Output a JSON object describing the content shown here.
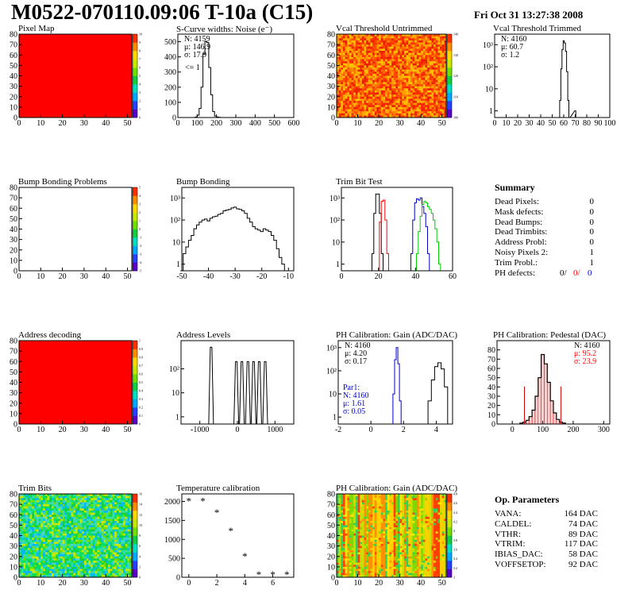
{
  "header": {
    "title": "M0522-070110.09:06 T-10a (C15)",
    "date": "Fri Oct 31 13:27:38 2008"
  },
  "colors": {
    "red": "#ff0000",
    "blue": "#0000cc",
    "green": "#00cc00"
  },
  "map_palette": [
    "#5a00c8",
    "#2840ff",
    "#00a8ff",
    "#00e0c0",
    "#10d040",
    "#70e000",
    "#c8e800",
    "#ffd800",
    "#ff8c00",
    "#ff3000"
  ],
  "chart_data": [
    {
      "id": "pixel-map",
      "type": "heatmap",
      "title": "Pixel Map",
      "fill": "uniform",
      "xlim": [
        0,
        52
      ],
      "ylim": [
        0,
        80
      ],
      "xticks": [
        "0",
        "10",
        "20",
        "30",
        "40",
        "50"
      ],
      "yticks": [
        "0",
        "10",
        "20",
        "30",
        "40",
        "50",
        "60",
        "70",
        "80"
      ],
      "zticks": [
        "0",
        "1",
        "2",
        "3",
        "4",
        "5",
        "6",
        "7",
        "8",
        "9",
        "10"
      ]
    },
    {
      "id": "scurve",
      "type": "line",
      "title": "S-Curve widths: Noise (e⁻)",
      "xlim": [
        0,
        600
      ],
      "ylim": [
        0,
        550
      ],
      "xticks": [
        "0",
        "100",
        "200",
        "300",
        "400",
        "500",
        "600"
      ],
      "yticks": [
        "0",
        "100",
        "200",
        "300",
        "400",
        "500"
      ],
      "annotation": "<= 1",
      "stats": [
        "N: 4159",
        "μ: 146.9",
        "σ: 17.9"
      ],
      "x": [
        85,
        95,
        105,
        115,
        125,
        135,
        145,
        155,
        165,
        175,
        185,
        195,
        205,
        215,
        225
      ],
      "values": [
        0,
        3,
        15,
        60,
        200,
        420,
        500,
        495,
        330,
        150,
        40,
        10,
        3,
        1,
        0
      ]
    },
    {
      "id": "vcal-untrimmed",
      "type": "heatmap",
      "title": "Vcal Threshold Untrimmed",
      "fill": "noise",
      "xlim": [
        0,
        52
      ],
      "ylim": [
        0,
        80
      ],
      "xticks": [
        "0",
        "10",
        "20",
        "30",
        "40",
        "50"
      ],
      "yticks": [
        "0",
        "10",
        "20",
        "30",
        "40",
        "50",
        "60",
        "70",
        "80"
      ],
      "zticks": [
        "100",
        "110",
        "120",
        "130",
        "140"
      ]
    },
    {
      "id": "vcal-trimmed",
      "type": "line",
      "title": "Vcal Threshold Trimmed",
      "log": true,
      "xlim": [
        0,
        100
      ],
      "ylim": [
        0.5,
        3000
      ],
      "xticks": [
        "0",
        "10",
        "20",
        "30",
        "40",
        "50",
        "60",
        "70",
        "80",
        "90",
        "100"
      ],
      "yticks": [
        "1",
        "10",
        "10²",
        "10³"
      ],
      "stats": [
        "N: 4160",
        "μ: 60.7",
        "σ: 1.2"
      ],
      "x": [
        56,
        57,
        58,
        59,
        60,
        61,
        62,
        63,
        64,
        65,
        70
      ],
      "values": [
        0,
        3,
        80,
        600,
        1500,
        1200,
        500,
        60,
        3,
        0,
        1
      ]
    },
    {
      "id": "bump-problems",
      "type": "heatmap",
      "title": "Bump Bonding Problems",
      "fill": "empty",
      "xlim": [
        0,
        52
      ],
      "ylim": [
        0,
        80
      ],
      "xticks": [
        "0",
        "10",
        "20",
        "30",
        "40",
        "50"
      ],
      "yticks": [
        "0",
        "10",
        "20",
        "30",
        "40",
        "50",
        "60",
        "70",
        "80"
      ],
      "zticks": [
        "-5",
        "-4",
        "-3",
        "-2",
        "-1",
        "0",
        "1",
        "2",
        "3",
        "4",
        "5"
      ]
    },
    {
      "id": "bump-bonding",
      "type": "line",
      "title": "Bump Bonding",
      "log": true,
      "xlim": [
        -50,
        -8
      ],
      "ylim": [
        0.5,
        3000
      ],
      "xticks": [
        "-50",
        "-40",
        "-30",
        "-20",
        "-10"
      ],
      "yticks": [
        "1",
        "10",
        "10²",
        "10³"
      ],
      "x": [
        -50,
        -49,
        -48,
        -47,
        -46,
        -45,
        -44,
        -43,
        -42,
        -41,
        -40,
        -39,
        -38,
        -37,
        -36,
        -35,
        -34,
        -33,
        -32,
        -31,
        -30,
        -29,
        -28,
        -27,
        -26,
        -25,
        -24,
        -23,
        -22,
        -21,
        -20,
        -19,
        -18,
        -17,
        -16,
        -15,
        -14,
        -13,
        -12,
        -11,
        -10
      ],
      "values": [
        0.5,
        3,
        6,
        12,
        20,
        40,
        60,
        80,
        100,
        110,
        90,
        120,
        140,
        150,
        180,
        200,
        260,
        280,
        300,
        350,
        380,
        320,
        300,
        260,
        200,
        120,
        80,
        50,
        40,
        35,
        30,
        40,
        35,
        30,
        20,
        12,
        5,
        2,
        1,
        0.5,
        0.5
      ]
    },
    {
      "id": "trim-bit-test",
      "type": "line",
      "title": "Trim Bit Test",
      "log": true,
      "xlim": [
        0,
        60
      ],
      "ylim": [
        0.5,
        3000
      ],
      "xticks": [
        "0",
        "20",
        "40",
        "60"
      ],
      "yticks": [
        "1",
        "10",
        "10²",
        "10³"
      ],
      "series": [
        {
          "color": "#000000",
          "x": [
            16,
            17,
            18,
            19,
            20,
            21,
            22,
            23
          ],
          "values": [
            0.5,
            3,
            200,
            1500,
            1500,
            200,
            3,
            0.5
          ]
        },
        {
          "color": "#ff0000",
          "x": [
            20,
            21,
            22,
            23,
            24,
            25,
            26
          ],
          "values": [
            0.5,
            80,
            700,
            800,
            100,
            3,
            0.5
          ]
        },
        {
          "color": "#0000cc",
          "x": [
            37,
            38,
            39,
            40,
            41,
            42,
            43,
            44,
            45,
            46,
            47,
            48
          ],
          "values": [
            0.5,
            3,
            100,
            600,
            900,
            800,
            1000,
            400,
            200,
            50,
            3,
            0.5
          ]
        },
        {
          "color": "#00cc00",
          "x": [
            40,
            41,
            42,
            43,
            44,
            45,
            46,
            47,
            48,
            49,
            50,
            51,
            52,
            53,
            54
          ],
          "values": [
            0.5,
            3,
            30,
            150,
            500,
            700,
            600,
            400,
            300,
            200,
            100,
            40,
            10,
            1,
            0.5
          ]
        }
      ]
    },
    {
      "id": "address-decoding",
      "type": "heatmap",
      "title": "Address decoding",
      "fill": "uniform",
      "xlim": [
        0,
        52
      ],
      "ylim": [
        0,
        80
      ],
      "xticks": [
        "0",
        "10",
        "20",
        "30",
        "40",
        "50"
      ],
      "yticks": [
        "0",
        "10",
        "20",
        "30",
        "40",
        "50",
        "60",
        "70",
        "80"
      ],
      "zticks": [
        "0",
        "0.1",
        "0.2",
        "0.3",
        "0.4",
        "0.5",
        "0.6",
        "0.7",
        "0.8",
        "0.9",
        "1"
      ]
    },
    {
      "id": "address-levels",
      "type": "bar",
      "title": "Address Levels",
      "log": true,
      "xlim": [
        -1500,
        1500
      ],
      "ylim": [
        0.5,
        1500
      ],
      "xticks": [
        "-1000",
        "0",
        "1000"
      ],
      "yticks": [
        "1",
        "10",
        "10²"
      ],
      "x": [
        -700,
        -30,
        120,
        280,
        430,
        580,
        740
      ],
      "values": [
        800,
        200,
        200,
        200,
        200,
        200,
        200
      ]
    },
    {
      "id": "ph-gain",
      "type": "line",
      "title": "PH Calibration: Gain (ADC/DAC)",
      "log": true,
      "xlim": [
        -2,
        5
      ],
      "ylim": [
        0.5,
        2000
      ],
      "xticks": [
        "-2",
        "0",
        "2",
        "4"
      ],
      "yticks": [
        "1",
        "10",
        "10²",
        "10³"
      ],
      "stats": [
        "N: 4160",
        "μ: 4.20",
        "σ: 0.17"
      ],
      "stats2": [
        "Par1:",
        "N: 4160",
        "μ: 1.61",
        "σ: 0.05"
      ],
      "series": [
        {
          "color": "#0000cc",
          "x": [
            1.3,
            1.4,
            1.5,
            1.6,
            1.7,
            1.8,
            1.9
          ],
          "values": [
            0.5,
            10,
            300,
            1000,
            200,
            5,
            0.5
          ]
        },
        {
          "color": "#000000",
          "x": [
            3.4,
            3.6,
            3.8,
            4.0,
            4.2,
            4.4,
            4.6,
            4.8
          ],
          "values": [
            0.5,
            5,
            40,
            150,
            220,
            120,
            20,
            0.5
          ]
        }
      ]
    },
    {
      "id": "ph-pedestal",
      "type": "bar",
      "title": "PH Calibration: Pedestal (DAC)",
      "xlim": [
        -50,
        320
      ],
      "ylim": [
        0,
        90
      ],
      "xticks": [
        "0",
        "100",
        "200",
        "300"
      ],
      "yticks": [
        "0",
        "10",
        "20",
        "30",
        "40",
        "50",
        "60",
        "70",
        "80"
      ],
      "stats": [
        "N: 4160",
        "μ: 95.2",
        "σ: 23.9"
      ],
      "fitx": [
        40,
        160
      ],
      "x": [
        30,
        40,
        50,
        60,
        70,
        80,
        90,
        100,
        110,
        120,
        130,
        140,
        150,
        160,
        170
      ],
      "values": [
        1,
        2,
        4,
        8,
        15,
        30,
        50,
        75,
        65,
        45,
        25,
        12,
        5,
        2,
        1
      ]
    },
    {
      "id": "trim-bits",
      "type": "heatmap",
      "title": "Trim Bits",
      "fill": "trim",
      "xlim": [
        0,
        52
      ],
      "ylim": [
        0,
        80
      ],
      "xticks": [
        "0",
        "10",
        "20",
        "30",
        "40",
        "50"
      ],
      "yticks": [
        "0",
        "10",
        "20",
        "30",
        "40",
        "50",
        "60",
        "70",
        "80"
      ],
      "zticks": [
        "0",
        "2",
        "4",
        "6",
        "8",
        "10",
        "12",
        "14",
        "16"
      ]
    },
    {
      "id": "temperature",
      "type": "scatter",
      "title": "Temperature calibration",
      "xlim": [
        -0.5,
        7.5
      ],
      "ylim": [
        0,
        2200
      ],
      "xticks": [
        "0",
        "2",
        "4",
        "6"
      ],
      "yticks": [
        "0",
        "500",
        "1000",
        "1500",
        "2000"
      ],
      "x": [
        0,
        1,
        2,
        3,
        4,
        5,
        6,
        7
      ],
      "values": [
        2020,
        2020,
        1720,
        1240,
        570,
        80,
        80,
        80
      ]
    },
    {
      "id": "ph-gain-map",
      "type": "heatmap",
      "title": "PH Calibration: Gain (ADC/DAC)",
      "fill": "columns",
      "xlim": [
        0,
        52
      ],
      "ylim": [
        0,
        80
      ],
      "xticks": [
        "0",
        "10",
        "20",
        "30",
        "40",
        "50"
      ],
      "yticks": [
        "0",
        "10",
        "20",
        "30",
        "40",
        "50",
        "60",
        "70",
        "80"
      ],
      "zticks": [
        "3",
        "3.2",
        "3.4",
        "3.6",
        "3.8",
        "4",
        "4.2",
        "4.4",
        "4.6",
        "4.8"
      ]
    }
  ],
  "summary": {
    "title": "Summary",
    "rows": [
      {
        "label": "Dead Pixels:",
        "value": "0"
      },
      {
        "label": "Mask defects:",
        "value": "0"
      },
      {
        "label": "Dead Bumps:",
        "value": "0"
      },
      {
        "label": "Dead Trimbits:",
        "value": "0"
      },
      {
        "label": "Address Probl:",
        "value": "0"
      },
      {
        "label": "Noisy Pixels 2:",
        "value": "1"
      },
      {
        "label": "Trim Probl.:",
        "value": "1"
      }
    ],
    "ph_label": "PH defects:",
    "ph_values": [
      "0/",
      "0/",
      "0"
    ]
  },
  "op_params": {
    "title": "Op. Parameters",
    "rows": [
      {
        "label": "VANA:",
        "value": "164 DAC"
      },
      {
        "label": "CALDEL:",
        "value": "74 DAC"
      },
      {
        "label": "VTHR:",
        "value": "89 DAC"
      },
      {
        "label": "VTRIM:",
        "value": "117 DAC"
      },
      {
        "label": "IBIAS_DAC:",
        "value": "58 DAC"
      },
      {
        "label": "VOFFSETOP:",
        "value": "92 DAC"
      }
    ]
  }
}
